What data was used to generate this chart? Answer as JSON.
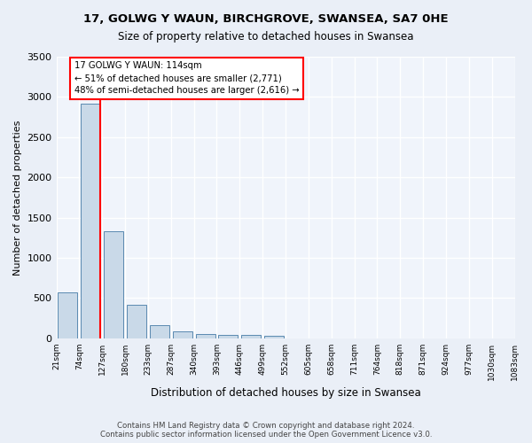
{
  "title1": "17, GOLWG Y WAUN, BIRCHGROVE, SWANSEA, SA7 0HE",
  "title2": "Size of property relative to detached houses in Swansea",
  "xlabel": "Distribution of detached houses by size in Swansea",
  "ylabel": "Number of detached properties",
  "footer": "Contains HM Land Registry data © Crown copyright and database right 2024.\nContains public sector information licensed under the Open Government Licence v3.0.",
  "bin_labels": [
    "21sqm",
    "74sqm",
    "127sqm",
    "180sqm",
    "233sqm",
    "287sqm",
    "340sqm",
    "393sqm",
    "446sqm",
    "499sqm",
    "552sqm",
    "605sqm",
    "658sqm",
    "711sqm",
    "764sqm",
    "818sqm",
    "871sqm",
    "924sqm",
    "977sqm",
    "1030sqm",
    "1083sqm"
  ],
  "bar_values": [
    570,
    2920,
    1330,
    410,
    160,
    80,
    50,
    45,
    40,
    35,
    0,
    0,
    0,
    0,
    0,
    0,
    0,
    0,
    0,
    0
  ],
  "bar_color": "#c9d9e8",
  "bar_edge_color": "#5a8ab0",
  "red_line_x": 1.42,
  "annotation_text": "17 GOLWG Y WAUN: 114sqm\n← 51% of detached houses are smaller (2,771)\n48% of semi-detached houses are larger (2,616) →",
  "ylim": [
    0,
    3500
  ],
  "yticks": [
    0,
    500,
    1000,
    1500,
    2000,
    2500,
    3000,
    3500
  ],
  "bg_color": "#eaeff7",
  "plot_bg_color": "#f0f4fb"
}
